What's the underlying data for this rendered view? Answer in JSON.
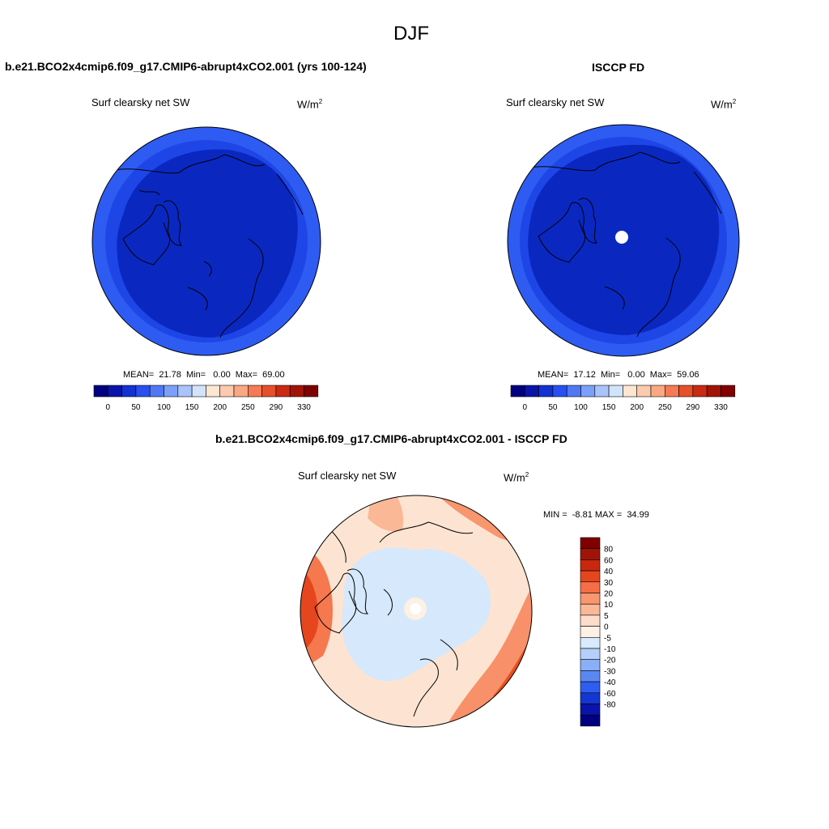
{
  "figure_title": "DJF",
  "colors": {
    "abs_scale": [
      "#000080",
      "#0a14a8",
      "#1432d2",
      "#2850f0",
      "#5078f5",
      "#7aa0f8",
      "#a8c4fa",
      "#d2e4fc",
      "#fde6d2",
      "#fccaae",
      "#faa882",
      "#f57a55",
      "#e6502a",
      "#c82a14",
      "#a01408",
      "#800000"
    ],
    "diff_scale": [
      "#800000",
      "#a01408",
      "#c8280f",
      "#e6461e",
      "#f56e46",
      "#f8966e",
      "#fab896",
      "#fddccc",
      "#fdf0e4",
      "#d8eafc",
      "#b4cffa",
      "#8aaff6",
      "#5a88f2",
      "#2e5ef0",
      "#1436d2",
      "#0a14aa",
      "#000080"
    ],
    "map_deep_blue": "#0a28c0",
    "map_mid_blue": "#1e46e6",
    "map_light_blue": "#3264f5"
  },
  "panel_left": {
    "title": "b.e21.BCO2x4cmip6.f09_g17.CMIP6-abrupt4xCO2.001 (yrs 100-124)",
    "variable": "Surf clearsky net SW",
    "units": "W/m",
    "units_exp": "2",
    "stats": "MEAN=  21.78  Min=   0.00  Max=  69.00"
  },
  "panel_right": {
    "title": "ISCCP FD",
    "variable": "Surf clearsky net SW",
    "units": "W/m",
    "units_exp": "2",
    "stats": "MEAN=  17.12  Min=   0.00  Max=  59.06"
  },
  "panel_diff": {
    "title": "b.e21.BCO2x4cmip6.f09_g17.CMIP6-abrupt4xCO2.001 - ISCCP FD",
    "variable": "Surf clearsky net SW",
    "units": "W/m",
    "units_exp": "2",
    "stats": "MIN =  -8.81 MAX =  34.99"
  },
  "colorbar_abs_labels": [
    "0",
    "50",
    "100",
    "150",
    "200",
    "250",
    "290",
    "330"
  ],
  "colorbar_diff_labels": [
    "80",
    "60",
    "40",
    "30",
    "20",
    "10",
    "5",
    "0",
    "-5",
    "-10",
    "-20",
    "-30",
    "-40",
    "-60",
    "-80"
  ]
}
